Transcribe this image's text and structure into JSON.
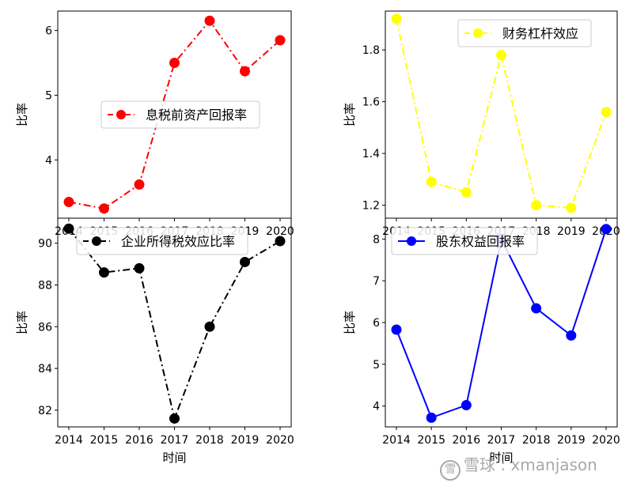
{
  "chart_data": [
    {
      "type": "line",
      "x": [
        "2014",
        "2015",
        "2016",
        "2017",
        "2018",
        "2019",
        "2020"
      ],
      "series": [
        {
          "name": "息税前资产回报率",
          "values": [
            3.35,
            3.25,
            3.62,
            5.5,
            6.15,
            5.37,
            5.85
          ],
          "color": "#ff0000",
          "dash": "dashdot"
        }
      ],
      "ylabel": "比率",
      "xlabel": "",
      "yticks": [
        "4",
        "5",
        "6"
      ],
      "ylim": [
        3.1,
        6.3
      ],
      "legend": "center-right"
    },
    {
      "type": "line",
      "x": [
        "2014",
        "2015",
        "2016",
        "2017",
        "2018",
        "2019",
        "2020"
      ],
      "series": [
        {
          "name": "财务杠杆效应",
          "values": [
            1.92,
            1.29,
            1.25,
            1.78,
            1.2,
            1.19,
            1.56
          ],
          "color": "#ffff00",
          "dash": "dashdot"
        }
      ],
      "ylabel": "比率",
      "xlabel": "",
      "yticks": [
        "1.2",
        "1.4",
        "1.6",
        "1.8"
      ],
      "ylim": [
        1.15,
        1.95
      ],
      "legend": "top-right"
    },
    {
      "type": "line",
      "x": [
        "2014",
        "2015",
        "2016",
        "2017",
        "2018",
        "2019",
        "2020"
      ],
      "series": [
        {
          "name": "企业所得税效应比率",
          "values": [
            90.7,
            88.6,
            88.8,
            81.6,
            86.0,
            89.1,
            90.1
          ],
          "color": "#000000",
          "dash": "dashdot"
        }
      ],
      "ylabel": "比率",
      "xlabel": "时间",
      "yticks": [
        "82",
        "84",
        "86",
        "88",
        "90"
      ],
      "ylim": [
        81.2,
        91.2
      ],
      "legend": "top-center"
    },
    {
      "type": "line",
      "x": [
        "2014",
        "2015",
        "2016",
        "2017",
        "2018",
        "2019",
        "2020"
      ],
      "series": [
        {
          "name": "股东权益回报率",
          "values": [
            5.83,
            3.72,
            4.02,
            8.0,
            6.34,
            5.69,
            8.24
          ],
          "color": "#0000ff",
          "dash": "solid"
        }
      ],
      "ylabel": "比率",
      "xlabel": "时间",
      "yticks": [
        "4",
        "5",
        "6",
        "7",
        "8"
      ],
      "ylim": [
        3.5,
        8.5
      ],
      "legend": "top-left"
    }
  ],
  "watermark": {
    "icon": "雪",
    "text": "雪球 : xmanjason"
  }
}
